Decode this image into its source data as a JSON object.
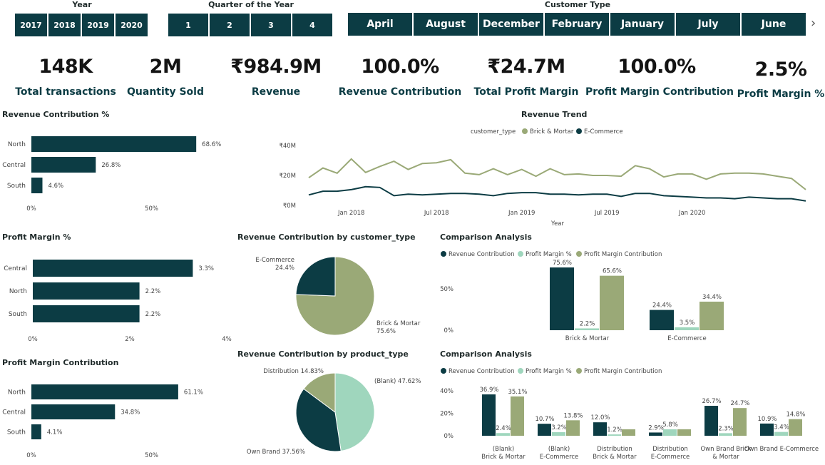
{
  "colors": {
    "dark": "#0c3c44",
    "olive": "#9aa977",
    "mint": "#9fd6bd",
    "text": "#444444"
  },
  "slicers": {
    "year": {
      "title": "Year",
      "items": [
        "2017",
        "2018",
        "2019",
        "2020"
      ]
    },
    "quarter": {
      "title": "Quarter of the Year",
      "items": [
        "1",
        "2",
        "3",
        "4"
      ]
    },
    "customer": {
      "title": "Customer Type",
      "items": [
        "April",
        "August",
        "December",
        "February",
        "January",
        "July",
        "June"
      ],
      "next_icon": "chevron-right-icon"
    }
  },
  "kpis": [
    {
      "value": "148K",
      "label": "Total transactions"
    },
    {
      "value": "2M",
      "label": "Quantity Sold"
    },
    {
      "value": "₹984.9M",
      "label": "Revenue"
    },
    {
      "value": "100.0%",
      "label": "Revenue Contribution"
    },
    {
      "value": "₹24.7M",
      "label": "Total Profit Margin"
    },
    {
      "value": "100.0%",
      "label": "Profit Margin Contribution"
    },
    {
      "value": "2.5%",
      "label": "Profit Margin %"
    }
  ],
  "chart_data": [
    {
      "id": "rev_contrib",
      "type": "bar",
      "orientation": "horizontal",
      "title": "Revenue Contribution %",
      "categories": [
        "North",
        "Central",
        "South"
      ],
      "values": [
        68.6,
        26.8,
        4.6
      ],
      "labels": [
        "68.6%",
        "26.8%",
        "4.6%"
      ],
      "xlim": [
        0,
        100
      ],
      "ticks": [
        "0%",
        "50%"
      ]
    },
    {
      "id": "rev_trend",
      "type": "line",
      "title": "Revenue Trend",
      "xlabel": "Year",
      "legend_title": "customer_type",
      "legend_position": "top-center",
      "ylim": [
        0,
        45
      ],
      "yticks": [
        "₹0M",
        "₹20M",
        "₹40M"
      ],
      "xticks": [
        "Jan 2018",
        "Jul 2018",
        "Jan 2019",
        "Jul 2019",
        "Jan 2020"
      ],
      "series": [
        {
          "name": "Brick & Mortar",
          "values": [
            18.5,
            25,
            21.5,
            31,
            22,
            26,
            29.5,
            24,
            28,
            28.5,
            30.5,
            21.5,
            20.5,
            24.5,
            20.5,
            24,
            19.5,
            24.5,
            20.5,
            21,
            20,
            20,
            19.5,
            26.5,
            24.5,
            19,
            21,
            21,
            17.5,
            21,
            21.5,
            21.5,
            21,
            19.5,
            18,
            10.5
          ]
        },
        {
          "name": "E-Commerce",
          "values": [
            7,
            9.5,
            9.5,
            10.5,
            12.5,
            12,
            6.5,
            7.5,
            7,
            7.5,
            8,
            8,
            7.5,
            6.5,
            8,
            8.5,
            8.5,
            7.5,
            7.5,
            7,
            7.5,
            7.5,
            6,
            8,
            8,
            6.5,
            6,
            5.5,
            5,
            5,
            4.5,
            5.5,
            5,
            4.5,
            4.5,
            3
          ]
        }
      ]
    },
    {
      "id": "profit_margin",
      "type": "bar",
      "orientation": "horizontal",
      "title": "Profit Margin %",
      "categories": [
        "Central",
        "North",
        "South"
      ],
      "values": [
        3.3,
        2.2,
        2.2
      ],
      "labels": [
        "3.3%",
        "2.2%",
        "2.2%"
      ],
      "xlim": [
        0,
        4
      ],
      "ticks": [
        "0%",
        "2%",
        "4%"
      ]
    },
    {
      "id": "pm_contrib",
      "type": "bar",
      "orientation": "horizontal",
      "title": "Profit Margin Contribution",
      "categories": [
        "North",
        "Central",
        "South"
      ],
      "values": [
        61.1,
        34.8,
        4.1
      ],
      "labels": [
        "61.1%",
        "34.8%",
        "4.1%"
      ],
      "xlim": [
        0,
        100
      ],
      "ticks": [
        "0%",
        "50%"
      ]
    },
    {
      "id": "pie_customer",
      "type": "pie",
      "title": "Revenue Contribution by customer_type",
      "slices": [
        {
          "name": "Brick & Mortar",
          "value": 75.6,
          "label": "75.6%"
        },
        {
          "name": "E-Commerce",
          "value": 24.4,
          "label": "24.4%"
        }
      ]
    },
    {
      "id": "pie_product",
      "type": "pie",
      "title": "Revenue Contribution by product_type",
      "slices": [
        {
          "name": "(Blank)",
          "value": 47.62,
          "label": "(Blank) 47.62%"
        },
        {
          "name": "Own Brand",
          "value": 37.56,
          "label": "Own Brand 37.56%"
        },
        {
          "name": "Distribution",
          "value": 14.83,
          "label": "Distribution 14.83%"
        }
      ]
    },
    {
      "id": "comp1",
      "type": "bar",
      "title": "Comparison Analysis",
      "legend_position": "top-left",
      "categories": [
        "Brick & Mortar",
        "E-Commerce"
      ],
      "ylim": [
        0,
        80
      ],
      "yticks": [
        "0%",
        "50%"
      ],
      "series": [
        {
          "name": "Revenue Contribution",
          "values": [
            75.6,
            24.4
          ],
          "labels": [
            "75.6%",
            "24.4%"
          ]
        },
        {
          "name": "Profit Margin %",
          "values": [
            2.2,
            3.5
          ],
          "labels": [
            "2.2%",
            "3.5%"
          ]
        },
        {
          "name": "Profit Margin Contribution",
          "values": [
            65.6,
            34.4
          ],
          "labels": [
            "65.6%",
            "34.4%"
          ]
        }
      ]
    },
    {
      "id": "comp2",
      "type": "bar",
      "title": "Comparison Analysis",
      "legend_position": "top-left",
      "categories": [
        "(Blank) Brick & Mortar",
        "(Blank) E-Commerce",
        "Distribution Brick & Mortar",
        "Distribution E-Commerce",
        "Own Brand Brick & Mortar",
        "Own Brand E-Commerce"
      ],
      "ylim": [
        0,
        42
      ],
      "yticks": [
        "0%",
        "20%",
        "40%"
      ],
      "series": [
        {
          "name": "Revenue Contribution",
          "values": [
            36.9,
            10.7,
            12.0,
            2.9,
            26.7,
            10.9
          ],
          "labels": [
            "36.9%",
            "10.7%",
            "12.0%",
            "2.9%",
            "26.7%",
            "10.9%"
          ]
        },
        {
          "name": "Profit Margin %",
          "values": [
            2.4,
            3.2,
            1.2,
            5.8,
            2.3,
            3.4
          ],
          "labels": [
            "2.4%",
            "3.2%",
            "1.2%",
            "5.8%",
            "2.3%",
            "3.4%"
          ]
        },
        {
          "name": "Profit Margin Contribution",
          "values": [
            35.1,
            13.8,
            5.8,
            5.8,
            24.7,
            14.8
          ],
          "labels": [
            "35.1%",
            "13.8%",
            "",
            "",
            "24.7%",
            "14.8%"
          ]
        }
      ]
    }
  ]
}
